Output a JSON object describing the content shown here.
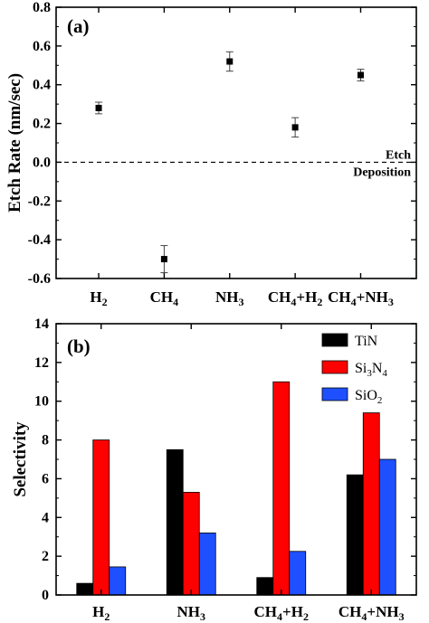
{
  "chart_data": [
    {
      "type": "scatter",
      "panel_label": "(a)",
      "ylabel": "Etch Rate (nm/sec)",
      "ylim": [
        -0.6,
        0.8
      ],
      "y_ticks": [
        "-0.6",
        "-0.4",
        "-0.2",
        "0.0",
        "0.2",
        "0.4",
        "0.6",
        "0.8"
      ],
      "categories": [
        {
          "base": "H",
          "sub": "2"
        },
        {
          "base": "CH",
          "sub": "4"
        },
        {
          "base": "NH",
          "sub": "3"
        },
        {
          "base": "CH",
          "sub": "4",
          "rest": "+H",
          "sub2": "2"
        },
        {
          "base": "CH",
          "sub": "4",
          "rest": "+NH",
          "sub2": "3"
        }
      ],
      "values": [
        0.28,
        -0.5,
        0.52,
        0.18,
        0.45
      ],
      "errors": [
        0.03,
        0.07,
        0.05,
        0.05,
        0.03
      ],
      "marker": "square",
      "reference_line": {
        "y": 0.0,
        "style": "dashed"
      },
      "annotations": [
        "Etch",
        "Deposition"
      ]
    },
    {
      "type": "bar",
      "panel_label": "(b)",
      "ylabel": "Selectivity",
      "ylim": [
        0,
        14
      ],
      "y_ticks": [
        "0",
        "2",
        "4",
        "6",
        "8",
        "10",
        "12",
        "14"
      ],
      "categories": [
        {
          "base": "H",
          "sub": "2"
        },
        {
          "base": "NH",
          "sub": "3"
        },
        {
          "base": "CH",
          "sub": "4",
          "rest": "+H",
          "sub2": "2"
        },
        {
          "base": "CH",
          "sub": "4",
          "rest": "+NH",
          "sub2": "3"
        }
      ],
      "series": [
        {
          "name": "TiN",
          "color": "#000000",
          "values": [
            0.6,
            7.5,
            0.9,
            6.2
          ]
        },
        {
          "name": "Si3N4",
          "color": "#ff0000",
          "values": [
            8.0,
            5.3,
            11.0,
            9.4
          ]
        },
        {
          "name": "SiO2",
          "color": "#1e50ff",
          "values": [
            1.45,
            3.2,
            2.25,
            7.0
          ]
        }
      ],
      "legend_labels": [
        {
          "base": "TiN"
        },
        {
          "base": "Si",
          "sub": "3",
          "rest": "N",
          "sub2": "4"
        },
        {
          "base": "SiO",
          "sub": "2"
        }
      ],
      "legend_position": "top-right"
    }
  ]
}
